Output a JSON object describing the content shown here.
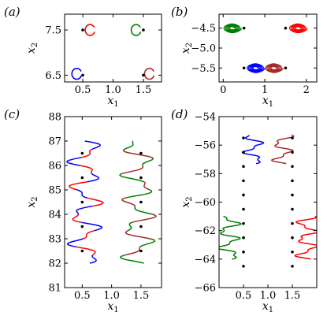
{
  "colors": {
    "blue": "#0000ff",
    "red": "#ff0000",
    "green": "#008000",
    "brown": "#a52a2a",
    "dot": "#000000"
  },
  "chart_data": [
    {
      "panel": "(a)",
      "type": "line",
      "xlabel": "x_1",
      "ylabel": "x_2",
      "xlim": [
        0.2,
        1.8
      ],
      "ylim": [
        6.35,
        7.85
      ],
      "xticks": [
        "0.5",
        "1.0",
        "1.5"
      ],
      "yticks": [
        "6.5",
        "7.5"
      ],
      "xtick_values": [
        0.5,
        1.0,
        1.5
      ],
      "ytick_values": [
        6.5,
        7.5
      ],
      "points": [
        [
          0.5,
          7.5
        ],
        [
          1.5,
          7.5
        ],
        [
          0.5,
          6.5
        ],
        [
          1.5,
          6.5
        ]
      ],
      "series": [
        {
          "color": "red",
          "kind": "loop",
          "cx": 0.62,
          "cy": 7.5,
          "rx": 0.08,
          "ry": 0.12
        },
        {
          "color": "green",
          "kind": "loop",
          "cx": 1.38,
          "cy": 7.5,
          "rx": 0.08,
          "ry": 0.12
        },
        {
          "color": "blue",
          "kind": "loop",
          "cx": 0.4,
          "cy": 6.53,
          "rx": 0.08,
          "ry": 0.12
        },
        {
          "color": "brown",
          "kind": "loop",
          "cx": 1.6,
          "cy": 6.53,
          "rx": 0.08,
          "ry": 0.12
        }
      ]
    },
    {
      "panel": "(b)",
      "type": "line",
      "xlabel": "x_1",
      "ylabel": "x_2",
      "xlim": [
        -0.1,
        2.25
      ],
      "ylim": [
        -5.85,
        -4.15
      ],
      "xticks": [
        "0",
        "1",
        "2"
      ],
      "yticks": [
        "−4.5",
        "−5.0",
        "−5.5"
      ],
      "xtick_values": [
        0,
        1,
        2
      ],
      "ytick_values": [
        -4.5,
        -5.0,
        -5.5
      ],
      "points": [
        [
          0.5,
          -4.5
        ],
        [
          1.5,
          -4.5
        ],
        [
          0.5,
          -5.5
        ],
        [
          1.5,
          -5.5
        ]
      ],
      "series": [
        {
          "color": "green",
          "kind": "spiral",
          "cx": 0.22,
          "cy": -4.5,
          "rx": 0.22,
          "ry": 0.12,
          "turns": 5
        },
        {
          "color": "red",
          "kind": "spiral",
          "cx": 1.8,
          "cy": -4.5,
          "rx": 0.22,
          "ry": 0.12,
          "turns": 5
        },
        {
          "color": "blue",
          "kind": "spiral",
          "cx": 0.78,
          "cy": -5.5,
          "rx": 0.22,
          "ry": 0.12,
          "turns": 5
        },
        {
          "color": "brown",
          "kind": "spiral",
          "cx": 1.22,
          "cy": -5.5,
          "rx": 0.22,
          "ry": 0.12,
          "turns": 5
        }
      ]
    },
    {
      "panel": "(c)",
      "type": "line",
      "xlabel": "x_1",
      "ylabel": "x_2",
      "xlim": [
        0.2,
        1.85
      ],
      "ylim": [
        81,
        88
      ],
      "xticks": [
        "0.5",
        "1.0",
        "1.5"
      ],
      "yticks": [
        "81",
        "82",
        "83",
        "84",
        "85",
        "86",
        "87",
        "88"
      ],
      "xtick_values": [
        0.5,
        1.0,
        1.5
      ],
      "ytick_values": [
        81,
        82,
        83,
        84,
        85,
        86,
        87,
        88
      ],
      "points": [
        [
          0.5,
          86.5
        ],
        [
          1.5,
          86.5
        ],
        [
          0.5,
          85.5
        ],
        [
          1.5,
          85.5
        ],
        [
          0.5,
          84.5
        ],
        [
          1.5,
          84.5
        ],
        [
          0.5,
          83.5
        ],
        [
          1.5,
          83.5
        ],
        [
          0.5,
          82.5
        ],
        [
          1.5,
          82.5
        ]
      ],
      "series": [
        {
          "colors": [
            "blue",
            "red"
          ],
          "kind": "wave",
          "x0": 0.55,
          "amp": 0.27,
          "y0": 82.0,
          "y1": 87.0,
          "offset": 0.0
        },
        {
          "colors": [
            "green",
            "brown"
          ],
          "kind": "wave",
          "x0": 1.45,
          "amp": 0.27,
          "y0": 82.0,
          "y1": 87.0,
          "offset": 3.1
        }
      ]
    },
    {
      "panel": "(d)",
      "type": "line",
      "xlabel": "x_1",
      "ylabel": "x_2",
      "xlim": [
        0.0,
        2.0
      ],
      "ylim": [
        -66,
        -54
      ],
      "xticks": [
        "0.5",
        "1.0",
        "1.5"
      ],
      "yticks": [
        "−54",
        "−56",
        "−58",
        "−60",
        "−62",
        "−64",
        "−66"
      ],
      "xtick_values": [
        0.5,
        1.0,
        1.5
      ],
      "ytick_values": [
        -54,
        -56,
        -58,
        -60,
        -62,
        -64,
        -66
      ],
      "points": [
        [
          0.5,
          -55.5
        ],
        [
          1.5,
          -55.5
        ],
        [
          0.5,
          -56.5
        ],
        [
          1.5,
          -56.5
        ],
        [
          0.5,
          -57.5
        ],
        [
          1.5,
          -57.5
        ],
        [
          0.5,
          -58.5
        ],
        [
          1.5,
          -58.5
        ],
        [
          0.5,
          -59.5
        ],
        [
          1.5,
          -59.5
        ],
        [
          0.5,
          -60.5
        ],
        [
          1.5,
          -60.5
        ],
        [
          0.5,
          -61.5
        ],
        [
          1.5,
          -61.5
        ],
        [
          0.5,
          -62.5
        ],
        [
          1.5,
          -62.5
        ],
        [
          0.5,
          -63.5
        ],
        [
          1.5,
          -63.5
        ],
        [
          0.5,
          -64.5
        ],
        [
          1.5,
          -64.5
        ]
      ],
      "series": [
        {
          "color": "blue",
          "kind": "wave",
          "x0": 0.7,
          "amp": 0.2,
          "y0": -57.3,
          "y1": -55.3,
          "offset": 0.0
        },
        {
          "color": "brown",
          "kind": "wave",
          "x0": 1.3,
          "amp": 0.2,
          "y0": -57.3,
          "y1": -55.3,
          "offset": 3.1
        },
        {
          "color": "green",
          "kind": "wave",
          "x0": 0.2,
          "amp": 0.22,
          "y0": -64.0,
          "y1": -61.0,
          "offset": 0.0
        },
        {
          "color": "red",
          "kind": "wave",
          "x0": 1.8,
          "amp": 0.22,
          "y0": -64.0,
          "y1": -61.0,
          "offset": 3.1
        }
      ]
    }
  ]
}
